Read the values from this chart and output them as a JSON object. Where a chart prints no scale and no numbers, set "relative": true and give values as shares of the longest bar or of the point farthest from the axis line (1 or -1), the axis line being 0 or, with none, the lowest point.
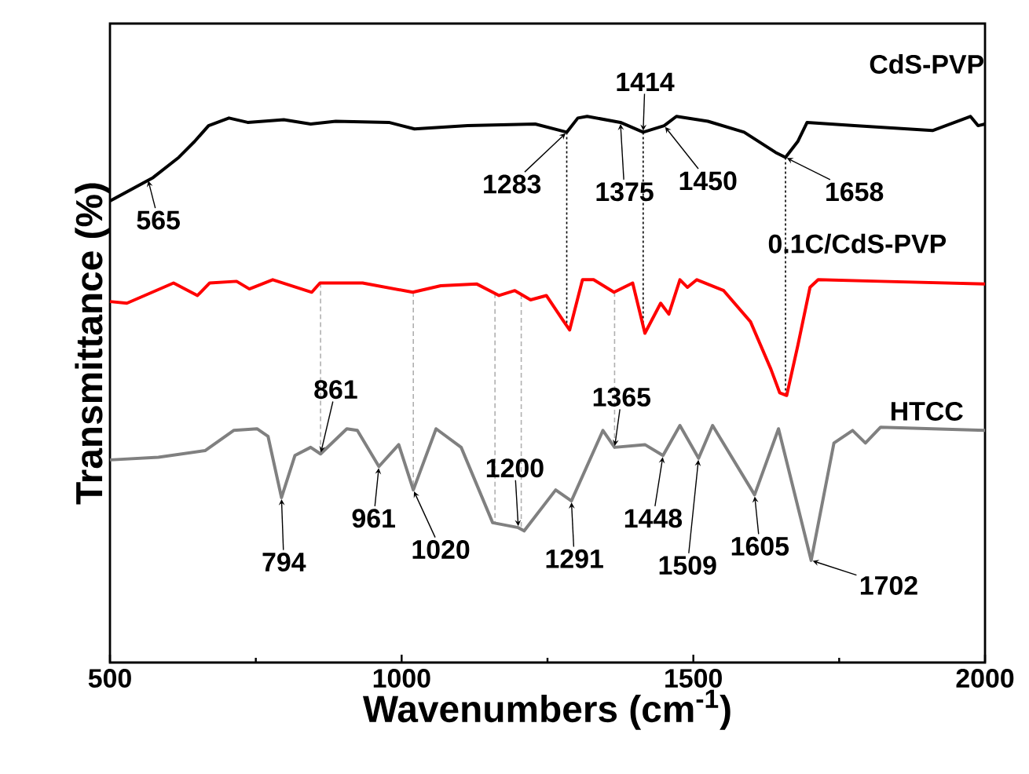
{
  "chart_data": {
    "type": "line",
    "relative": true,
    "xlabel": "Wavenumbers (cm$^{-1}$)",
    "ylabel": "Transmittance (%)",
    "xlim": [
      500,
      2000
    ],
    "xticks": [
      500,
      1000,
      1500,
      2000
    ],
    "tick_labels": "x",
    "series": [
      {
        "name": "CdS-PVP",
        "color": "#000000",
        "x": [
          500,
          574,
          618,
          645,
          669,
          704,
          736,
          798,
          844,
          887,
          978,
          1022,
          1113,
          1229,
          1283,
          1302,
          1318,
          1375,
          1414,
          1450,
          1471,
          1525,
          1587,
          1641,
          1658,
          1679,
          1695,
          1776,
          1910,
          1975,
          1988,
          2000
        ],
        "values": [
          0.845,
          0.888,
          0.925,
          0.954,
          0.983,
          0.997,
          0.989,
          0.994,
          0.986,
          0.991,
          0.989,
          0.977,
          0.983,
          0.986,
          0.971,
          0.997,
          1.0,
          0.989,
          0.971,
          0.983,
          1.0,
          0.991,
          0.971,
          0.934,
          0.925,
          0.954,
          0.989,
          0.983,
          0.974,
          1.0,
          0.983,
          0.986
        ]
      },
      {
        "name": "0.1C/CdS-PVP",
        "color": "#ff0000",
        "x": [
          500,
          529,
          609,
          650,
          671,
          717,
          739,
          779,
          846,
          860,
          933,
          1019,
          1067,
          1129,
          1167,
          1194,
          1221,
          1248,
          1275,
          1288,
          1310,
          1329,
          1364,
          1396,
          1417,
          1444,
          1458,
          1477,
          1490,
          1506,
          1552,
          1598,
          1633,
          1648,
          1660,
          1679,
          1700,
          1714,
          1821,
          2000
        ],
        "values": [
          0.661,
          0.658,
          0.695,
          0.672,
          0.695,
          0.698,
          0.684,
          0.701,
          0.678,
          0.695,
          0.695,
          0.678,
          0.69,
          0.693,
          0.672,
          0.681,
          0.664,
          0.672,
          0.629,
          0.609,
          0.701,
          0.701,
          0.678,
          0.695,
          0.603,
          0.658,
          0.638,
          0.701,
          0.687,
          0.701,
          0.681,
          0.624,
          0.537,
          0.494,
          0.489,
          0.58,
          0.687,
          0.701,
          0.698,
          0.693
        ]
      },
      {
        "name": "HTCC",
        "color": "#808080",
        "x": [
          500,
          583,
          663,
          712,
          752,
          771,
          794,
          817,
          844,
          861,
          906,
          924,
          961,
          995,
          1020,
          1059,
          1102,
          1156,
          1200,
          1210,
          1264,
          1291,
          1345,
          1365,
          1417,
          1448,
          1477,
          1509,
          1533,
          1605,
          1646,
          1702,
          1741,
          1773,
          1795,
          1821,
          2000
        ],
        "values": [
          0.371,
          0.376,
          0.388,
          0.425,
          0.428,
          0.414,
          0.302,
          0.379,
          0.394,
          0.382,
          0.428,
          0.425,
          0.359,
          0.399,
          0.316,
          0.428,
          0.394,
          0.256,
          0.247,
          0.241,
          0.316,
          0.296,
          0.425,
          0.394,
          0.399,
          0.379,
          0.434,
          0.374,
          0.434,
          0.307,
          0.428,
          0.187,
          0.402,
          0.425,
          0.402,
          0.431,
          0.425
        ]
      }
    ],
    "ref_lines": [
      {
        "axis": "x",
        "value": 1283,
        "color": "#000000",
        "line_style": "dotted"
      },
      {
        "axis": "x",
        "value": 1414,
        "color": "#000000",
        "line_style": "dotted"
      },
      {
        "axis": "x",
        "value": 1658,
        "color": "#000000",
        "line_style": "dotted"
      },
      {
        "axis": "x",
        "value": 861,
        "color": "#b0b0b0",
        "line_style": "dashed"
      },
      {
        "axis": "x",
        "value": 1020,
        "color": "#b0b0b0",
        "line_style": "dashed"
      },
      {
        "axis": "x",
        "value": 1160,
        "color": "#b0b0b0",
        "line_style": "dashed"
      },
      {
        "axis": "x",
        "value": 1205,
        "color": "#b0b0b0",
        "line_style": "dashed"
      },
      {
        "axis": "x",
        "value": 1365,
        "color": "#b0b0b0",
        "line_style": "dashed"
      }
    ],
    "annotations": [
      {
        "text": "565",
        "x": 565,
        "y": 0.885
      },
      {
        "text": "1283",
        "x": 1283,
        "y": 0.971
      },
      {
        "text": "1375",
        "x": 1375,
        "y": 0.989
      },
      {
        "text": "1414",
        "x": 1414,
        "y": 0.971
      },
      {
        "text": "1450",
        "x": 1450,
        "y": 0.983
      },
      {
        "text": "1658",
        "x": 1658,
        "y": 0.925
      },
      {
        "text": "794",
        "x": 794,
        "y": 0.302
      },
      {
        "text": "861",
        "x": 861,
        "y": 0.382
      },
      {
        "text": "961",
        "x": 961,
        "y": 0.359
      },
      {
        "text": "1020",
        "x": 1020,
        "y": 0.316
      },
      {
        "text": "1200",
        "x": 1200,
        "y": 0.247
      },
      {
        "text": "1291",
        "x": 1291,
        "y": 0.296
      },
      {
        "text": "1365",
        "x": 1365,
        "y": 0.394
      },
      {
        "text": "1448",
        "x": 1448,
        "y": 0.379
      },
      {
        "text": "1509",
        "x": 1509,
        "y": 0.374
      },
      {
        "text": "1605",
        "x": 1605,
        "y": 0.307
      },
      {
        "text": "1702",
        "x": 1702,
        "y": 0.187
      }
    ]
  }
}
